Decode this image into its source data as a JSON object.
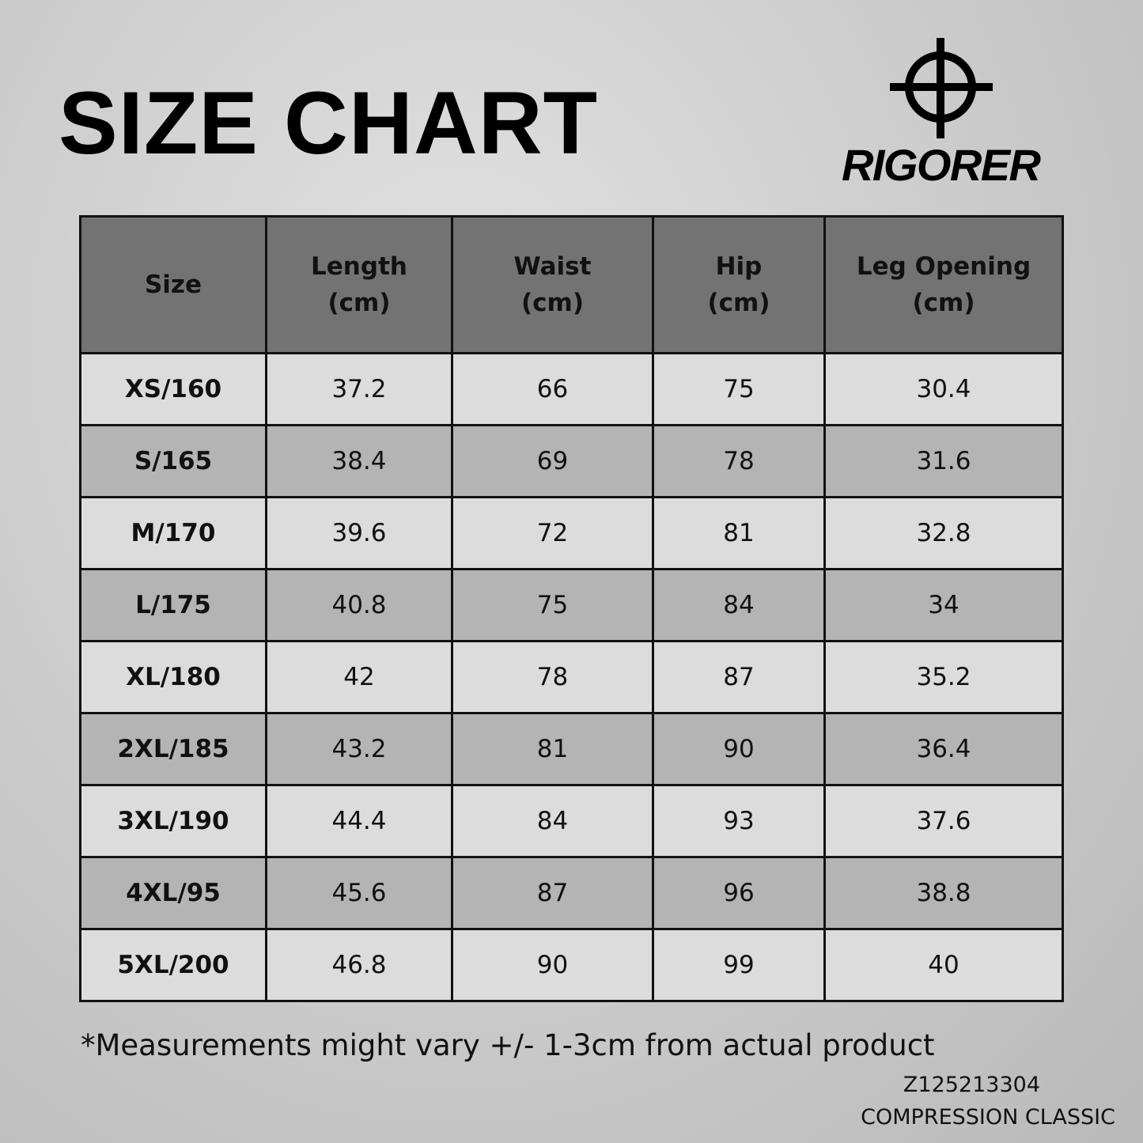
{
  "header": {
    "title": "SIZE CHART",
    "brand": "RIGORER"
  },
  "table": {
    "columns": [
      [
        "Size"
      ],
      [
        "Length",
        "(cm)"
      ],
      [
        "Waist",
        "(cm)"
      ],
      [
        "Hip",
        "(cm)"
      ],
      [
        "Leg Opening",
        "(cm)"
      ]
    ],
    "rows": [
      [
        "XS/160",
        37.2,
        66,
        75,
        30.4
      ],
      [
        "S/165",
        38.4,
        69,
        78,
        31.6
      ],
      [
        "M/170",
        39.6,
        72,
        81,
        32.8
      ],
      [
        "L/175",
        40.8,
        75,
        84,
        34
      ],
      [
        "XL/180",
        42,
        78,
        87,
        35.2
      ],
      [
        "2XL/185",
        43.2,
        81,
        90,
        36.4
      ],
      [
        "3XL/190",
        44.4,
        84,
        93,
        37.6
      ],
      [
        "4XL/95",
        45.6,
        87,
        96,
        38.8
      ],
      [
        "5XL/200",
        46.8,
        90,
        99,
        40
      ]
    ]
  },
  "footer": {
    "note": "*Measurements might vary +/- 1-3cm from actual product",
    "code": "Z125213304",
    "product": "COMPRESSION CLASSIC"
  }
}
